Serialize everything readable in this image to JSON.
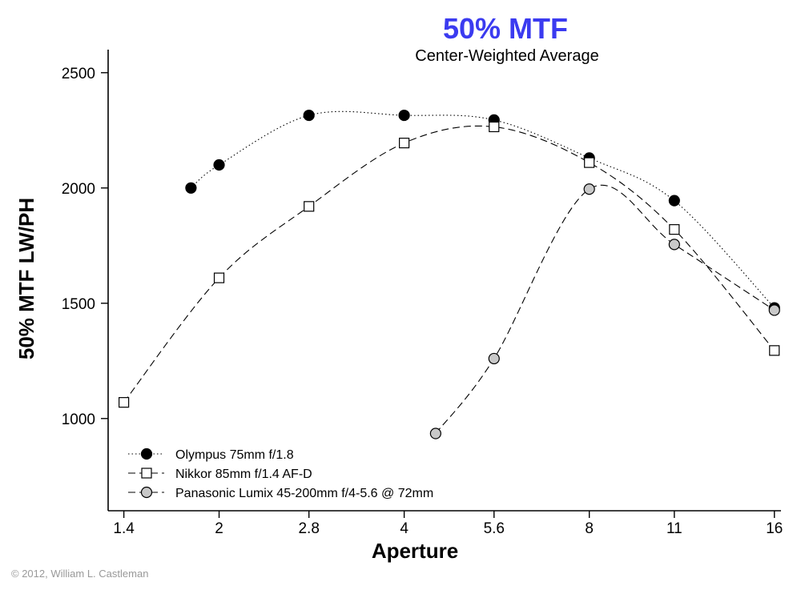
{
  "chart_data": {
    "type": "line",
    "title": "50% MTF",
    "subtitle": "Center-Weighted Average",
    "xlabel": "Aperture",
    "ylabel": "50% MTF LW/PH",
    "x_scale": "log",
    "xlim": [
      1.32,
      16.4
    ],
    "ylim": [
      600,
      2600
    ],
    "x_ticks": [
      1.4,
      2,
      2.8,
      4,
      5.6,
      8,
      11,
      16
    ],
    "x_tick_labels": [
      "1.4",
      "2",
      "2.8",
      "4",
      "5.6",
      "8",
      "11",
      "16"
    ],
    "y_ticks": [
      1000,
      1500,
      2000,
      2500
    ],
    "y_tick_labels": [
      "1000",
      "1500",
      "2000",
      "2500"
    ],
    "grid": false,
    "legend_position": "bottom-left",
    "series": [
      {
        "name": "Olympus 75mm f/1.8",
        "line_style": "dotted",
        "marker": "circle",
        "marker_fill": "#000000",
        "x": [
          1.8,
          2,
          2.8,
          4,
          5.6,
          8,
          11,
          16
        ],
        "y": [
          2000,
          2100,
          2315,
          2315,
          2295,
          2130,
          1945,
          1480
        ]
      },
      {
        "name": "Nikkor 85mm f/1.4 AF-D",
        "line_style": "dashed",
        "marker": "square",
        "marker_fill": "#ffffff",
        "x": [
          1.4,
          2,
          2.8,
          4,
          5.6,
          8,
          11,
          16
        ],
        "y": [
          1070,
          1610,
          1920,
          2195,
          2265,
          2110,
          1820,
          1295
        ]
      },
      {
        "name": "Panasonic Lumix 45-200mm f/4-5.6 @ 72mm",
        "line_style": "dashed",
        "marker": "circle",
        "marker_fill": "#c8c8c8",
        "x": [
          4.5,
          5.6,
          8,
          11,
          16
        ],
        "y": [
          935,
          1260,
          1995,
          1755,
          1470
        ]
      }
    ],
    "colors": {
      "title": "#3b3bf0",
      "axis": "#000000",
      "line": "#000000"
    }
  },
  "copyright": "© 2012, William L. Castleman"
}
